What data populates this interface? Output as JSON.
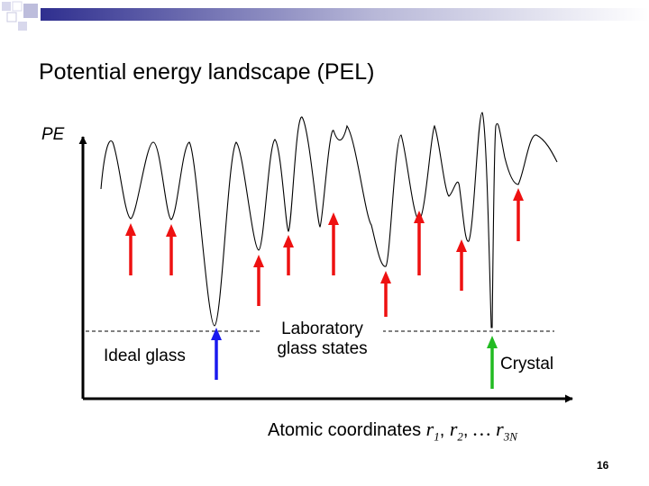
{
  "title": "Potential energy landscape (PEL)",
  "y_axis_label": "PE",
  "x_axis_label": "Atomic coordinates",
  "x_axis_coords": {
    "r1": "r",
    "sub1": "1",
    "r2": "r",
    "sub2": "2",
    "dots": "…",
    "r3n": "r",
    "sub3n": "3N"
  },
  "labels": {
    "ideal_glass": "Ideal glass",
    "laboratory_line1": "Laboratory",
    "laboratory_line2": "glass states",
    "crystal": "Crystal"
  },
  "page_number": "16",
  "colors": {
    "laboratory_arrow": "#ee1111",
    "ideal_glass_arrow": "#1a1aee",
    "crystal_arrow": "#22bb22",
    "banner_start": "#2f2f8f",
    "banner_end": "#ffffff"
  }
}
